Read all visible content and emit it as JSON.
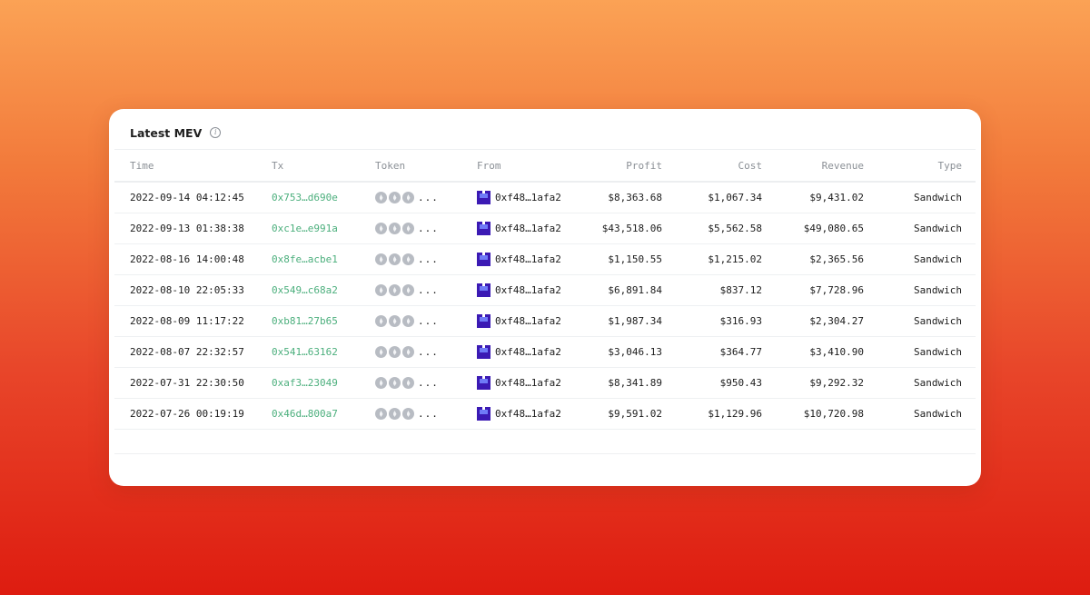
{
  "panel": {
    "title": "Latest MEV",
    "info_icon": "info-circle-icon"
  },
  "columns": [
    "Time",
    "Tx",
    "Token",
    "From",
    "Profit",
    "Cost",
    "Revenue",
    "Type"
  ],
  "colors": {
    "tx_link": "#4caf7d",
    "avatar": "#3b1ab4"
  },
  "rows": [
    {
      "time": "2022-09-14 04:12:45",
      "tx": "0x753…d690e",
      "tokens_more": "...",
      "from": "0xf48…1afa2",
      "profit": "$8,363.68",
      "cost": "$1,067.34",
      "revenue": "$9,431.02",
      "type": "Sandwich"
    },
    {
      "time": "2022-09-13 01:38:38",
      "tx": "0xc1e…e991a",
      "tokens_more": "...",
      "from": "0xf48…1afa2",
      "profit": "$43,518.06",
      "cost": "$5,562.58",
      "revenue": "$49,080.65",
      "type": "Sandwich"
    },
    {
      "time": "2022-08-16 14:00:48",
      "tx": "0x8fe…acbe1",
      "tokens_more": "...",
      "from": "0xf48…1afa2",
      "profit": "$1,150.55",
      "cost": "$1,215.02",
      "revenue": "$2,365.56",
      "type": "Sandwich"
    },
    {
      "time": "2022-08-10 22:05:33",
      "tx": "0x549…c68a2",
      "tokens_more": "...",
      "from": "0xf48…1afa2",
      "profit": "$6,891.84",
      "cost": "$837.12",
      "revenue": "$7,728.96",
      "type": "Sandwich"
    },
    {
      "time": "2022-08-09 11:17:22",
      "tx": "0xb81…27b65",
      "tokens_more": "...",
      "from": "0xf48…1afa2",
      "profit": "$1,987.34",
      "cost": "$316.93",
      "revenue": "$2,304.27",
      "type": "Sandwich"
    },
    {
      "time": "2022-08-07 22:32:57",
      "tx": "0x541…63162",
      "tokens_more": "...",
      "from": "0xf48…1afa2",
      "profit": "$3,046.13",
      "cost": "$364.77",
      "revenue": "$3,410.90",
      "type": "Sandwich"
    },
    {
      "time": "2022-07-31 22:30:50",
      "tx": "0xaf3…23049",
      "tokens_more": "...",
      "from": "0xf48…1afa2",
      "profit": "$8,341.89",
      "cost": "$950.43",
      "revenue": "$9,292.32",
      "type": "Sandwich"
    },
    {
      "time": "2022-07-26 00:19:19",
      "tx": "0x46d…800a7",
      "tokens_more": "...",
      "from": "0xf48…1afa2",
      "profit": "$9,591.02",
      "cost": "$1,129.96",
      "revenue": "$10,720.98",
      "type": "Sandwich"
    }
  ]
}
